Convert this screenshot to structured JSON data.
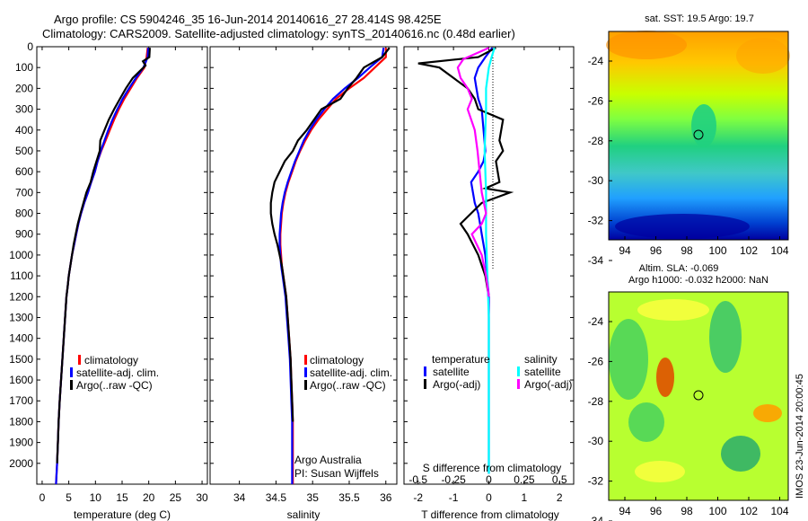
{
  "chart_data": [
    {
      "type": "line",
      "title_line1": "Argo profile: CS 5904246_35 16-Jun-2014 20140616_27 28.414S 98.425E",
      "title_line2": "Climatology: CARS2009. Satellite-adjusted climatology: synTS_20140616.nc (0.48d earlier)",
      "xlabel": "temperature (deg C)",
      "xlim": [
        -1,
        31
      ],
      "ylim": [
        2100,
        0
      ],
      "xticks": [
        "0",
        "5",
        "10",
        "15",
        "20",
        "25",
        "30"
      ],
      "yticks": [
        "0",
        "100",
        "200",
        "300",
        "400",
        "500",
        "600",
        "700",
        "800",
        "900",
        "1000",
        "1100",
        "1200",
        "1300",
        "1400",
        "1500",
        "1600",
        "1700",
        "1800",
        "1900",
        "2000"
      ],
      "legend": [
        "climatology",
        "satellite-adj. clim.",
        "Argo(..raw -QC)"
      ],
      "series": [
        {
          "name": "climatology",
          "color": "#ff0000",
          "x": [
            19.8,
            19.6,
            19.2,
            17.8,
            16.6,
            15.4,
            14.4,
            13.5,
            12.7,
            11.9,
            11.1,
            10.4,
            9.9,
            9.2,
            8.6,
            7.9,
            7.3,
            6.8,
            6.4,
            6.0,
            5.6,
            5.3,
            5.0,
            4.8,
            4.55,
            4.3,
            4.05,
            3.8,
            3.55,
            3.3,
            3.1,
            2.95,
            2.8,
            2.7,
            2.6
          ],
          "depth": [
            5,
            50,
            100,
            150,
            200,
            250,
            300,
            350,
            400,
            450,
            500,
            550,
            600,
            650,
            700,
            750,
            800,
            850,
            900,
            950,
            1000,
            1050,
            1100,
            1150,
            1200,
            1300,
            1400,
            1500,
            1600,
            1700,
            1800,
            1900,
            2000,
            2050,
            2100
          ]
        },
        {
          "name": "satellite-adj. clim.",
          "color": "#0000ff",
          "x": [
            19.9,
            19.8,
            19.0,
            17.6,
            16.3,
            15.1,
            14.1,
            13.2,
            12.4,
            11.7,
            11.0,
            10.4,
            9.9,
            9.2,
            8.6,
            7.9,
            7.3,
            6.8,
            6.4,
            6.0,
            5.6,
            5.3,
            5.0,
            4.8,
            4.55,
            4.3,
            4.05,
            3.8,
            3.55,
            3.3,
            3.1,
            2.95,
            2.8,
            2.7,
            2.6
          ],
          "depth": [
            5,
            50,
            100,
            150,
            200,
            250,
            300,
            350,
            400,
            450,
            500,
            550,
            600,
            650,
            700,
            750,
            800,
            850,
            900,
            950,
            1000,
            1050,
            1100,
            1150,
            1200,
            1300,
            1400,
            1500,
            1600,
            1700,
            1800,
            1900,
            2000,
            2050,
            2100
          ]
        },
        {
          "name": "Argo(..raw -QC)",
          "color": "#000000",
          "x": [
            20.2,
            20.1,
            18.9,
            19.4,
            17.0,
            15.7,
            14.6,
            13.5,
            12.5,
            11.7,
            10.9,
            10.8,
            10.2,
            9.6,
            9.1,
            8.3,
            7.2,
            6.7,
            6.3,
            5.9,
            5.6,
            5.3,
            5.0,
            4.8,
            4.55,
            4.3,
            4.05,
            3.8,
            3.55,
            3.3,
            3.1,
            2.95,
            2.8
          ],
          "depth": [
            5,
            50,
            70,
            90,
            150,
            200,
            250,
            300,
            350,
            400,
            450,
            500,
            550,
            600,
            650,
            700,
            800,
            850,
            900,
            950,
            1000,
            1050,
            1100,
            1150,
            1200,
            1300,
            1400,
            1500,
            1600,
            1700,
            1800,
            1900,
            2000
          ]
        }
      ]
    },
    {
      "type": "line",
      "xlabel": "salinity",
      "xlim": [
        33.6,
        36.15
      ],
      "ylim": [
        2100,
        0
      ],
      "xticks": [
        "34",
        "34.5",
        "35",
        "35.5",
        "36"
      ],
      "legend": [
        "climatology",
        "satellite-adj. clim.",
        "Argo(..raw -QC)"
      ],
      "credit_line1": "Argo Australia",
      "credit_line2": "PI: Susan Wijffels",
      "series": [
        {
          "name": "climatology",
          "color": "#ff0000",
          "x": [
            36.0,
            36.0,
            35.85,
            35.7,
            35.5,
            35.32,
            35.2,
            35.08,
            34.98,
            34.9,
            34.83,
            34.77,
            34.72,
            34.67,
            34.63,
            34.6,
            34.58,
            34.57,
            34.56,
            34.56,
            34.57,
            34.58,
            34.6,
            34.62,
            34.64,
            34.66,
            34.68,
            34.7,
            34.71,
            34.72,
            34.73,
            34.73,
            34.73,
            34.73
          ],
          "depth": [
            5,
            50,
            100,
            150,
            200,
            250,
            300,
            350,
            400,
            450,
            500,
            550,
            600,
            650,
            700,
            750,
            800,
            850,
            900,
            950,
            1000,
            1050,
            1100,
            1150,
            1200,
            1300,
            1400,
            1500,
            1600,
            1700,
            1800,
            1900,
            2000,
            2100
          ]
        },
        {
          "name": "satellite-adj. clim.",
          "color": "#0000ff",
          "x": [
            35.97,
            35.95,
            35.78,
            35.62,
            35.44,
            35.28,
            35.16,
            35.05,
            34.96,
            34.88,
            34.82,
            34.76,
            34.71,
            34.66,
            34.62,
            34.59,
            34.57,
            34.56,
            34.55,
            34.55,
            34.56,
            34.57,
            34.59,
            34.61,
            34.63,
            34.65,
            34.67,
            34.69,
            34.7,
            34.71,
            34.72,
            34.72,
            34.72,
            34.72
          ],
          "depth": [
            5,
            50,
            100,
            150,
            200,
            250,
            300,
            350,
            400,
            450,
            500,
            550,
            600,
            650,
            700,
            750,
            800,
            850,
            900,
            950,
            1000,
            1050,
            1100,
            1150,
            1200,
            1300,
            1400,
            1500,
            1600,
            1700,
            1800,
            1900,
            2000,
            2100
          ]
        },
        {
          "name": "Argo(..raw -QC)",
          "color": "#000000",
          "x": [
            36.05,
            35.95,
            35.7,
            35.6,
            35.48,
            35.38,
            35.12,
            35.02,
            34.92,
            34.8,
            34.73,
            34.62,
            34.55,
            34.48,
            34.45,
            34.43,
            34.43,
            34.45,
            34.48,
            34.52,
            34.55,
            34.58,
            34.62,
            34.64,
            34.66,
            34.68,
            34.7,
            34.71,
            34.72,
            34.73
          ],
          "depth": [
            5,
            50,
            100,
            150,
            200,
            250,
            300,
            350,
            400,
            450,
            500,
            550,
            600,
            650,
            700,
            750,
            800,
            850,
            900,
            950,
            1000,
            1050,
            1150,
            1200,
            1300,
            1400,
            1500,
            1600,
            1700,
            1800
          ]
        }
      ]
    },
    {
      "type": "line",
      "top_xlabel": "S difference from climatology",
      "xlabel": "T difference from climatology",
      "xlim": [
        -2.4,
        2.4
      ],
      "ylim": [
        2100,
        0
      ],
      "xticks": [
        "-2",
        "-1",
        "0",
        "1",
        "2"
      ],
      "top_xticks": [
        "-0.5",
        "-0.25",
        "0",
        "0.25",
        "0.5"
      ],
      "legend_title_temperature": "temperature",
      "legend_title_salinity": "salinity",
      "legend_t_sat": "satellite",
      "legend_t_argo": "Argo(-adj)",
      "legend_s_sat": "satellite",
      "legend_s_argo": "Argo(-adj)",
      "series": [
        {
          "name": "temperature satellite",
          "color": "#0000ff",
          "x": [
            0.1,
            -0.1,
            -0.3,
            -0.4,
            -0.35,
            -0.3,
            -0.2,
            -0.15,
            -0.1,
            -0.15,
            -0.3,
            -0.5,
            -0.45,
            -0.4,
            -0.3,
            -0.25,
            -0.2,
            -0.1,
            -0.05,
            0,
            0,
            0,
            0,
            0
          ],
          "depth": [
            5,
            50,
            100,
            150,
            200,
            250,
            300,
            400,
            500,
            550,
            600,
            650,
            700,
            750,
            800,
            850,
            900,
            1000,
            1100,
            1200,
            1400,
            1600,
            1800,
            2050
          ]
        },
        {
          "name": "temperature Argo(-adj)",
          "color": "#000000",
          "x": [
            0.2,
            -0.3,
            -2.0,
            -1.4,
            -1.0,
            -0.6,
            -0.4,
            -0.3,
            0.4,
            0.3,
            0.4,
            0.2,
            0.3,
            -0.1,
            0.6,
            -0.2,
            -0.5,
            -0.8,
            -0.6,
            -0.3,
            -0.1,
            0
          ],
          "depth": [
            5,
            50,
            80,
            100,
            150,
            200,
            250,
            300,
            350,
            450,
            500,
            550,
            650,
            680,
            700,
            750,
            800,
            850,
            900,
            1000,
            1100,
            1200
          ]
        },
        {
          "name": "salinity satellite",
          "color": "#00ffff",
          "x": [
            0.04,
            0.02,
            0.0,
            -0.02,
            -0.02,
            -0.03,
            -0.02,
            -0.02,
            -0.01,
            0.0,
            0.0,
            0.0,
            0.0
          ],
          "depth": [
            5,
            50,
            100,
            200,
            300,
            500,
            700,
            900,
            1100,
            1300,
            1500,
            1800,
            2050
          ]
        },
        {
          "name": "salinity Argo(-adj)",
          "color": "#ff00ff",
          "x": [
            0.0,
            -0.18,
            -0.22,
            -0.2,
            -0.15,
            -0.12,
            -0.15,
            -0.1,
            -0.08,
            -0.05,
            -0.02,
            -0.05,
            -0.12,
            -0.05,
            -0.02,
            0.0
          ],
          "depth": [
            5,
            60,
            100,
            150,
            200,
            250,
            300,
            400,
            500,
            700,
            800,
            850,
            900,
            1000,
            1100,
            1200
          ]
        }
      ]
    },
    {
      "type": "heatmap",
      "title": "sat. SST: 19.5 Argo: 19.7",
      "xticks": [
        "94",
        "96",
        "98",
        "100",
        "102",
        "104"
      ],
      "yticks": [
        "-24",
        "-26",
        "-28",
        "-30",
        "-32",
        "-34"
      ],
      "marker": "Argo position circle"
    },
    {
      "type": "heatmap",
      "title_line1": "Altim. SLA: -0.069",
      "title_line2": "Argo h1000: -0.032 h2000: NaN",
      "xticks": [
        "94",
        "96",
        "98",
        "100",
        "102",
        "104"
      ],
      "yticks": [
        "-24",
        "-26",
        "-28",
        "-30",
        "-32",
        "-34"
      ],
      "marker": "Argo position circle",
      "side_label": "IMOS 23-Jun-2014 20:00:45"
    }
  ]
}
